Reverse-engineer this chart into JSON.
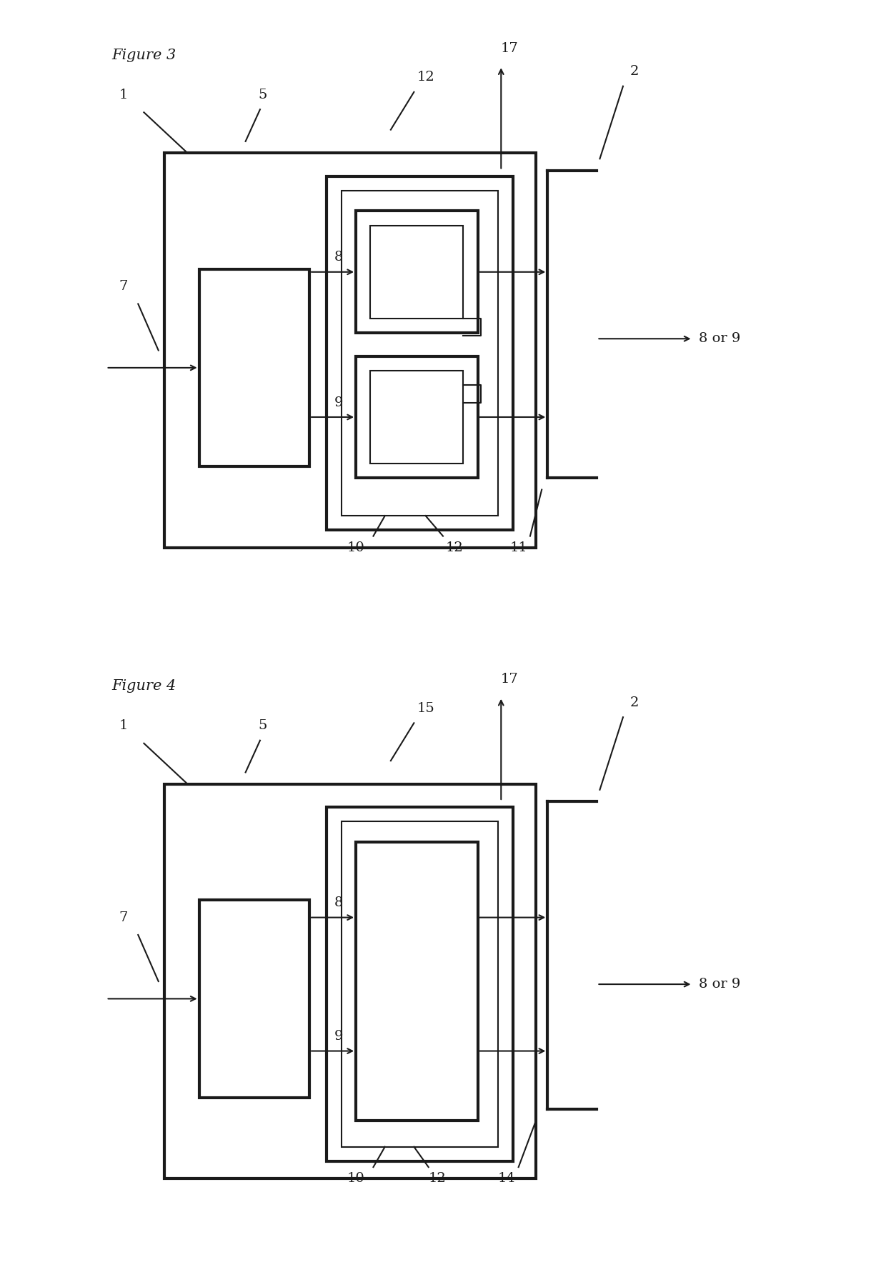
{
  "fig_title1": "Figure 3",
  "fig_title2": "Figure 4",
  "bg_color": "#ffffff",
  "line_color": "#1a1a1a",
  "lw_thick": 3.0,
  "lw_thin": 1.5,
  "font_size_label": 14,
  "font_size_title": 15
}
